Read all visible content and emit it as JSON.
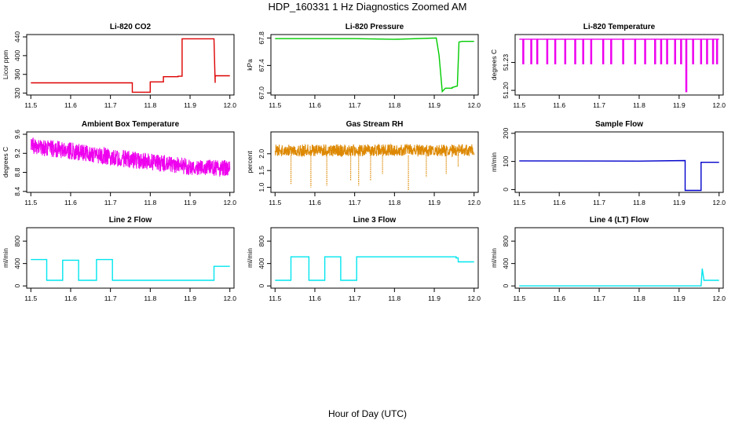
{
  "figure": {
    "title": "HDP_160331  1 Hz Diagnostics Zoomed AM",
    "xlabel": "Hour of Day (UTC)"
  },
  "chart_data": [
    {
      "id": "co2",
      "type": "line",
      "title": "Li-820 CO2",
      "ylabel": "Licor ppm",
      "color": "#dd0000",
      "xlim": [
        11.5,
        12.0
      ],
      "ylim": [
        316,
        445
      ],
      "xticks": [
        "11.5",
        "11.6",
        "11.7",
        "11.8",
        "11.9",
        "12.0"
      ],
      "yticks": [
        "320",
        "360",
        "400",
        "440"
      ],
      "series": [
        {
          "name": "Li-820 CO2",
          "x": [
            11.5,
            11.755,
            11.755,
            11.8,
            11.8,
            11.833,
            11.833,
            11.87,
            11.87,
            11.88,
            11.88,
            11.96,
            11.96,
            11.963,
            11.963,
            12.0
          ],
          "y": [
            342,
            342,
            322,
            322,
            344,
            344,
            355,
            355,
            356,
            356,
            436,
            436,
            436,
            342,
            357,
            357
          ]
        }
      ]
    },
    {
      "id": "pressure",
      "type": "line",
      "title": "Li-820 Pressure",
      "ylabel": "kPa",
      "color": "#00cc00",
      "xlim": [
        11.5,
        12.0
      ],
      "ylim": [
        66.97,
        67.85
      ],
      "xticks": [
        "11.5",
        "11.6",
        "11.7",
        "11.8",
        "11.9",
        "12.0"
      ],
      "yticks": [
        "67.0",
        "67.4",
        "67.8"
      ],
      "series": [
        {
          "name": "Li-820 Pressure",
          "x": [
            11.5,
            11.7,
            11.8,
            11.905,
            11.912,
            11.92,
            11.928,
            11.945,
            11.945,
            11.958,
            11.962,
            11.97,
            11.985,
            12.0
          ],
          "y": [
            67.79,
            67.79,
            67.78,
            67.8,
            67.55,
            67.02,
            67.07,
            67.07,
            67.08,
            67.1,
            67.74,
            67.75,
            67.75,
            67.75
          ]
        }
      ]
    },
    {
      "id": "licor_temp",
      "type": "line",
      "title": "Li-820 Temperature",
      "ylabel": "degrees C",
      "color": "#ee00ee",
      "xlim": [
        11.5,
        12.0
      ],
      "ylim": [
        51.195,
        51.26
      ],
      "xticks": [
        "11.5",
        "11.6",
        "11.7",
        "11.8",
        "11.9",
        "12.0"
      ],
      "yticks": [
        "51.20",
        "51.23"
      ],
      "series": [
        {
          "name": "Li-820 Temperature",
          "x": [
            11.5,
            12.0
          ],
          "y": [
            51.255,
            51.255
          ]
        }
      ],
      "dips": [
        {
          "x": 11.51,
          "y": 51.228
        },
        {
          "x": 11.53,
          "y": 51.228
        },
        {
          "x": 11.545,
          "y": 51.228
        },
        {
          "x": 11.57,
          "y": 51.228
        },
        {
          "x": 11.59,
          "y": 51.228
        },
        {
          "x": 11.615,
          "y": 51.228
        },
        {
          "x": 11.64,
          "y": 51.228
        },
        {
          "x": 11.66,
          "y": 51.228
        },
        {
          "x": 11.68,
          "y": 51.228
        },
        {
          "x": 11.71,
          "y": 51.228
        },
        {
          "x": 11.73,
          "y": 51.228
        },
        {
          "x": 11.76,
          "y": 51.228
        },
        {
          "x": 11.79,
          "y": 51.228
        },
        {
          "x": 11.815,
          "y": 51.228
        },
        {
          "x": 11.84,
          "y": 51.228
        },
        {
          "x": 11.855,
          "y": 51.228
        },
        {
          "x": 11.87,
          "y": 51.228
        },
        {
          "x": 11.89,
          "y": 51.228
        },
        {
          "x": 11.905,
          "y": 51.228
        },
        {
          "x": 11.918,
          "y": 51.198
        },
        {
          "x": 11.935,
          "y": 51.228
        },
        {
          "x": 11.955,
          "y": 51.228
        },
        {
          "x": 11.97,
          "y": 51.228
        },
        {
          "x": 11.985,
          "y": 51.228
        },
        {
          "x": 11.995,
          "y": 51.228
        }
      ]
    },
    {
      "id": "box_temp",
      "type": "line",
      "title": "Ambient Box Temperature",
      "ylabel": "degrees C",
      "color": "#ee00ee",
      "xlim": [
        11.5,
        12.0
      ],
      "ylim": [
        8.38,
        9.65
      ],
      "xticks": [
        "11.5",
        "11.6",
        "11.7",
        "11.8",
        "11.9",
        "12.0"
      ],
      "yticks": [
        "8.4",
        "8.8",
        "9.2",
        "9.6"
      ],
      "series": [
        {
          "name": "Ambient Box Temperature",
          "x": [
            11.5,
            11.6,
            11.7,
            11.8,
            11.9,
            12.0
          ],
          "y": [
            9.35,
            9.25,
            9.12,
            9.02,
            8.92,
            8.88
          ]
        }
      ],
      "noise_band": 0.18
    },
    {
      "id": "rh",
      "type": "line",
      "title": "Gas Stream RH",
      "ylabel": "percent",
      "color": "#dd8800",
      "xlim": [
        11.5,
        12.0
      ],
      "ylim": [
        0.85,
        2.65
      ],
      "xticks": [
        "11.5",
        "11.6",
        "11.7",
        "11.8",
        "11.9",
        "12.0"
      ],
      "yticks": [
        "1.0",
        "1.5",
        "2.0"
      ],
      "series": [
        {
          "name": "Gas Stream RH",
          "x": [
            11.5,
            12.0
          ],
          "y": [
            2.1,
            2.1
          ]
        }
      ],
      "noise_band": 0.18,
      "spikes": [
        {
          "x": 11.54,
          "y": 1.1
        },
        {
          "x": 11.59,
          "y": 1.0
        },
        {
          "x": 11.63,
          "y": 1.05
        },
        {
          "x": 11.69,
          "y": 1.2
        },
        {
          "x": 11.71,
          "y": 1.05
        },
        {
          "x": 11.74,
          "y": 1.2
        },
        {
          "x": 11.77,
          "y": 1.4
        },
        {
          "x": 11.835,
          "y": 0.92
        },
        {
          "x": 11.88,
          "y": 1.3
        },
        {
          "x": 11.93,
          "y": 1.4
        },
        {
          "x": 11.96,
          "y": 1.6
        }
      ]
    },
    {
      "id": "sample_flow",
      "type": "line",
      "title": "Sample Flow",
      "ylabel": "ml/min",
      "color": "#0000cc",
      "xlim": [
        11.5,
        12.0
      ],
      "ylim": [
        -10,
        205
      ],
      "xticks": [
        "11.5",
        "11.6",
        "11.7",
        "11.8",
        "11.9",
        "12.0"
      ],
      "yticks": [
        "0",
        "100",
        "200"
      ],
      "series": [
        {
          "name": "Sample Flow",
          "x": [
            11.5,
            11.8,
            11.915,
            11.915,
            11.955,
            11.955,
            12.0
          ],
          "y": [
            102,
            101,
            103,
            -3,
            -3,
            97,
            97
          ]
        }
      ]
    },
    {
      "id": "line2",
      "type": "line",
      "title": "Line 2 Flow",
      "ylabel": "ml/min",
      "color": "#00e5ee",
      "xlim": [
        11.5,
        12.0
      ],
      "ylim": [
        -40,
        1040
      ],
      "xticks": [
        "11.5",
        "11.6",
        "11.7",
        "11.8",
        "11.9",
        "12.0"
      ],
      "yticks": [
        "0",
        "400",
        "800"
      ],
      "series": [
        {
          "name": "Line 2 Flow",
          "x": [
            11.5,
            11.54,
            11.54,
            11.58,
            11.58,
            11.62,
            11.62,
            11.665,
            11.665,
            11.705,
            11.705,
            11.96,
            11.96,
            12.0
          ],
          "y": [
            470,
            470,
            100,
            100,
            460,
            460,
            100,
            100,
            470,
            470,
            100,
            100,
            350,
            350
          ]
        }
      ]
    },
    {
      "id": "line3",
      "type": "line",
      "title": "Line 3 Flow",
      "ylabel": "ml/min",
      "color": "#00e5ee",
      "xlim": [
        11.5,
        12.0
      ],
      "ylim": [
        -40,
        1040
      ],
      "xticks": [
        "11.5",
        "11.6",
        "11.7",
        "11.8",
        "11.9",
        "12.0"
      ],
      "yticks": [
        "0",
        "400",
        "800"
      ],
      "series": [
        {
          "name": "Line 3 Flow",
          "x": [
            11.5,
            11.54,
            11.54,
            11.585,
            11.585,
            11.625,
            11.625,
            11.665,
            11.665,
            11.705,
            11.705,
            11.955,
            11.955,
            11.96,
            11.96,
            12.0
          ],
          "y": [
            100,
            100,
            520,
            520,
            100,
            100,
            520,
            520,
            100,
            100,
            520,
            520,
            500,
            500,
            430,
            430
          ]
        }
      ]
    },
    {
      "id": "line4",
      "type": "line",
      "title": "Line 4 (LT) Flow",
      "ylabel": "ml/min",
      "color": "#00e5ee",
      "xlim": [
        11.5,
        12.0
      ],
      "ylim": [
        -40,
        1040
      ],
      "xticks": [
        "11.5",
        "11.6",
        "11.7",
        "11.8",
        "11.9",
        "12.0"
      ],
      "yticks": [
        "0",
        "400",
        "800"
      ],
      "series": [
        {
          "name": "Line 4 (LT) Flow",
          "x": [
            11.5,
            11.955,
            11.958,
            11.962,
            11.962,
            12.0
          ],
          "y": [
            0,
            0,
            310,
            110,
            100,
            100
          ]
        }
      ]
    }
  ]
}
